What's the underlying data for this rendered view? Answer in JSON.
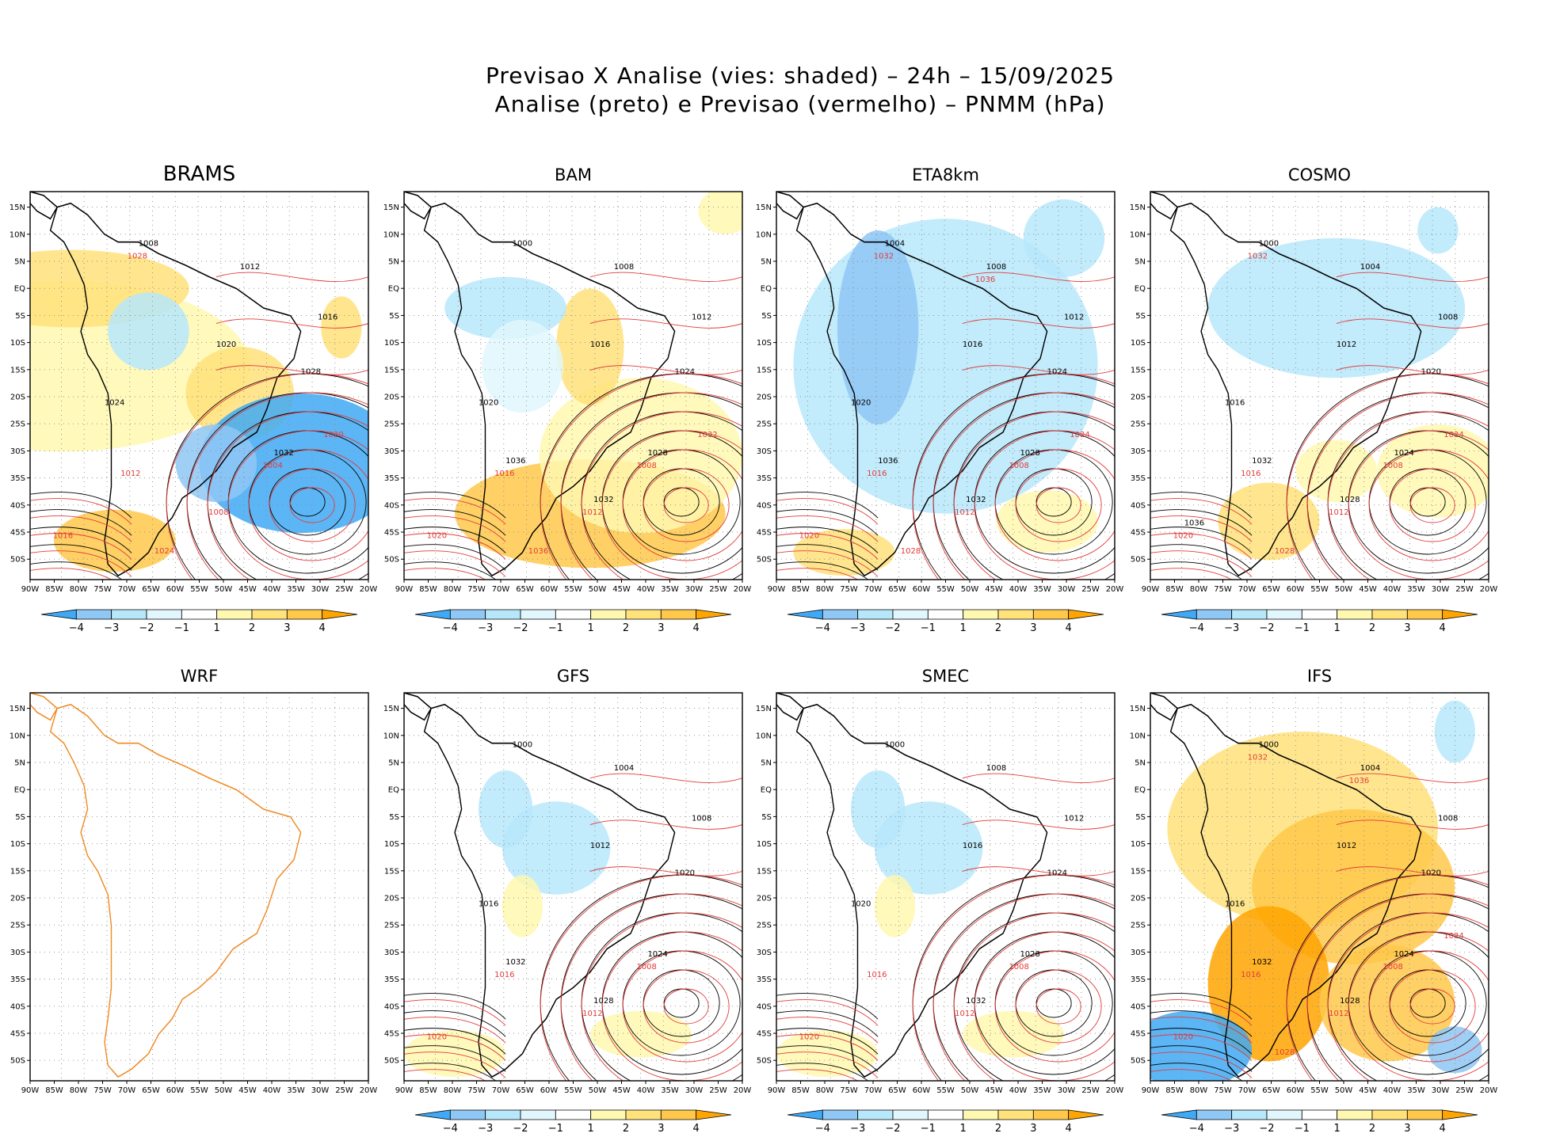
{
  "figure": {
    "title_line1": "Previsao X Analise (vies: shaded) – 24h – 15/09/2025",
    "title_line2": "Analise (preto) e Previsao (vermelho) – PNMM (hPa)"
  },
  "axes": {
    "x_ticks": [
      "90W",
      "85W",
      "80W",
      "75W",
      "70W",
      "65W",
      "60W",
      "55W",
      "50W",
      "45W",
      "40W",
      "35W",
      "30W",
      "25W",
      "20W"
    ],
    "y_ticks": [
      "15N",
      "10N",
      "5N",
      "EQ",
      "5S",
      "10S",
      "15S",
      "20S",
      "25S",
      "30S",
      "35S",
      "40S",
      "45S",
      "50S"
    ]
  },
  "colorbar": {
    "labels": [
      "−4",
      "−3",
      "−2",
      "−1",
      "1",
      "2",
      "3",
      "4"
    ],
    "colors": [
      "#3fa9f5",
      "#8fc7f5",
      "#b7e7fb",
      "#e1f7fd",
      "#ffffff",
      "#fff8b0",
      "#ffe27a",
      "#ffc84a",
      "#ffa500"
    ]
  },
  "colors": {
    "analysis_contour": "#000000",
    "forecast_contour": "#e23b3b",
    "coastline_wrf": "#f08a24"
  },
  "panels": [
    {
      "id": "brams",
      "title": "BRAMS",
      "bias": "mixed",
      "has_colorbar": true,
      "labels_black": [
        "1008",
        "1012",
        "1016",
        "1020",
        "1024",
        "1028",
        "1032"
      ],
      "labels_red": [
        "1004",
        "1008",
        "1012",
        "1016",
        "1020",
        "1024",
        "1028"
      ]
    },
    {
      "id": "bam",
      "title": "BAM",
      "bias": "warm-south",
      "has_colorbar": true,
      "labels_black": [
        "1000",
        "1008",
        "1012",
        "1016",
        "1020",
        "1024",
        "1028",
        "1032",
        "1036"
      ],
      "labels_red": [
        "1008",
        "1012",
        "1016",
        "1020",
        "1032",
        "1036"
      ]
    },
    {
      "id": "eta8km",
      "title": "ETA8km",
      "bias": "cool",
      "has_colorbar": true,
      "labels_black": [
        "1004",
        "1008",
        "1012",
        "1016",
        "1020",
        "1024",
        "1028",
        "1032",
        "1036"
      ],
      "labels_red": [
        "1008",
        "1012",
        "1016",
        "1020",
        "1024",
        "1028",
        "1032",
        "1036"
      ]
    },
    {
      "id": "cosmo",
      "title": "COSMO",
      "bias": "mixed-light",
      "has_colorbar": true,
      "labels_black": [
        "1000",
        "1004",
        "1008",
        "1012",
        "1016",
        "1020",
        "1024",
        "1028",
        "1032",
        "1036"
      ],
      "labels_red": [
        "1008",
        "1012",
        "1016",
        "1020",
        "1024",
        "1028",
        "1032"
      ]
    },
    {
      "id": "wrf",
      "title": "WRF",
      "bias": "none",
      "has_colorbar": false,
      "labels_black": [],
      "labels_red": []
    },
    {
      "id": "gfs",
      "title": "GFS",
      "bias": "light",
      "has_colorbar": true,
      "labels_black": [
        "1000",
        "1004",
        "1008",
        "1012",
        "1016",
        "1020",
        "1024",
        "1028",
        "1032"
      ],
      "labels_red": [
        "1008",
        "1012",
        "1016",
        "1020"
      ]
    },
    {
      "id": "smec",
      "title": "SMEC",
      "bias": "light",
      "has_colorbar": true,
      "labels_black": [
        "1000",
        "1008",
        "1012",
        "1016",
        "1020",
        "1024",
        "1028",
        "1032"
      ],
      "labels_red": [
        "1008",
        "1012",
        "1016",
        "1020"
      ]
    },
    {
      "id": "ifs",
      "title": "IFS",
      "bias": "warm",
      "has_colorbar": true,
      "labels_black": [
        "1000",
        "1004",
        "1008",
        "1012",
        "1016",
        "1020",
        "1024",
        "1028",
        "1032"
      ],
      "labels_red": [
        "1008",
        "1012",
        "1016",
        "1020",
        "1024",
        "1028",
        "1032",
        "1036"
      ]
    }
  ]
}
